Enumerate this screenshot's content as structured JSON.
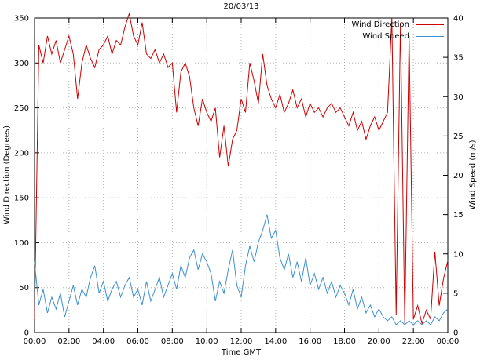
{
  "chart_data": {
    "type": "line",
    "title": "20/03/13",
    "xlabel": "Time GMT",
    "ylabel": "Wind Direction (Degrees)",
    "y2label": "Wind Speed (m/s)",
    "xlim": [
      0,
      24
    ],
    "ylim": [
      0,
      350
    ],
    "y2lim": [
      0,
      40
    ],
    "grid": true,
    "legend_position": "top-right",
    "x_unit": "hours",
    "x_start": 0,
    "x_step": 0.25,
    "x_tick_positions": [
      0,
      2,
      4,
      6,
      8,
      10,
      12,
      14,
      16,
      18,
      20,
      22,
      24
    ],
    "x_tick_labels": [
      "00:00",
      "02:00",
      "04:00",
      "06:00",
      "08:00",
      "10:00",
      "12:00",
      "14:00",
      "16:00",
      "18:00",
      "20:00",
      "22:00",
      "00:00"
    ],
    "y_ticks": [
      0,
      50,
      100,
      150,
      200,
      250,
      300,
      350
    ],
    "y2_ticks": [
      0,
      5,
      10,
      15,
      20,
      25,
      30,
      35,
      40
    ],
    "series": [
      {
        "name": "Wind Direction",
        "axis": "left",
        "color": "#cc0000",
        "values": [
          15,
          320,
          300,
          330,
          310,
          325,
          300,
          315,
          330,
          310,
          260,
          300,
          320,
          305,
          295,
          315,
          320,
          330,
          310,
          325,
          320,
          340,
          355,
          330,
          320,
          345,
          310,
          305,
          315,
          300,
          310,
          295,
          300,
          245,
          290,
          300,
          285,
          250,
          230,
          260,
          245,
          235,
          250,
          195,
          230,
          185,
          215,
          225,
          260,
          245,
          300,
          280,
          255,
          310,
          275,
          260,
          250,
          265,
          245,
          255,
          270,
          250,
          260,
          240,
          255,
          245,
          250,
          240,
          250,
          255,
          245,
          250,
          240,
          230,
          245,
          225,
          235,
          215,
          230,
          240,
          225,
          235,
          245,
          350,
          20,
          345,
          10,
          330,
          15,
          30,
          10,
          25,
          15,
          90,
          30,
          60,
          80
        ]
      },
      {
        "name": "Wind Speed",
        "axis": "right",
        "color": "#3d8fd1",
        "values": [
          9,
          3.5,
          5.5,
          2.5,
          4.5,
          3,
          5,
          2,
          4,
          6,
          3.5,
          5.5,
          4.5,
          7,
          8.5,
          5,
          6.5,
          4,
          5.5,
          6.5,
          4.5,
          6,
          7,
          4.5,
          5.5,
          3.5,
          6.5,
          4,
          5.5,
          7,
          4.5,
          6,
          7.5,
          5.5,
          8.5,
          7,
          9.5,
          10.5,
          8,
          10,
          9,
          7.5,
          4,
          6.5,
          5,
          8,
          10.5,
          6,
          4.5,
          8.5,
          11,
          9,
          11.5,
          13,
          15,
          12,
          13,
          9.5,
          8,
          10,
          7,
          9,
          6.5,
          9.5,
          6,
          7.5,
          5.5,
          7,
          5,
          6.5,
          4.5,
          6,
          5,
          3.5,
          5.5,
          3,
          4.5,
          2.5,
          3.5,
          2,
          3,
          2,
          1.5,
          2,
          1,
          1.5,
          1,
          1.5,
          1,
          1.5,
          1,
          1.5,
          1,
          2,
          1.5,
          2.5,
          3
        ]
      }
    ]
  },
  "legend": {
    "items": [
      {
        "label": "Wind Direction",
        "color": "#cc0000"
      },
      {
        "label": "Wind Speed",
        "color": "#3d8fd1"
      }
    ]
  },
  "colors": {
    "grid": "#b0b0b0",
    "axis": "#000000",
    "background": "#ffffff"
  }
}
